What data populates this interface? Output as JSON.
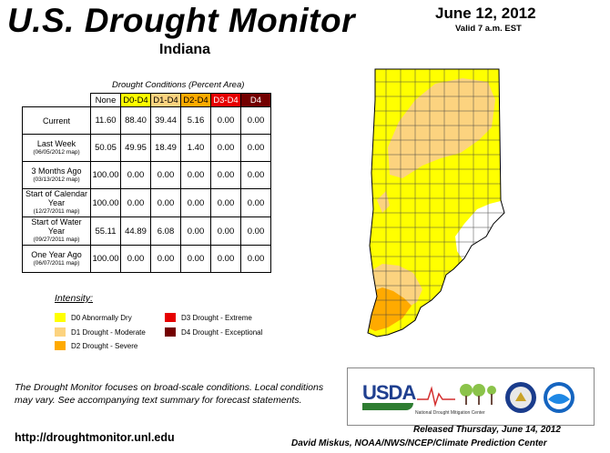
{
  "header": {
    "title": "U.S. Drought Monitor",
    "state": "Indiana",
    "date": "June 12, 2012",
    "valid": "Valid 7 a.m. EST"
  },
  "table": {
    "caption": "Drought Conditions (Percent Area)",
    "columns": [
      "None",
      "D0-D4",
      "D1-D4",
      "D2-D4",
      "D3-D4",
      "D4"
    ],
    "column_colors": [
      "#ffffff",
      "#ffff00",
      "#fcd37f",
      "#ffaa00",
      "#e60000",
      "#730000"
    ],
    "rows": [
      {
        "label": "Current",
        "sub": "",
        "values": [
          "11.60",
          "88.40",
          "39.44",
          "5.16",
          "0.00",
          "0.00"
        ]
      },
      {
        "label": "Last Week",
        "sub": "(06/05/2012 map)",
        "values": [
          "50.05",
          "49.95",
          "18.49",
          "1.40",
          "0.00",
          "0.00"
        ]
      },
      {
        "label": "3 Months Ago",
        "sub": "(03/13/2012 map)",
        "values": [
          "100.00",
          "0.00",
          "0.00",
          "0.00",
          "0.00",
          "0.00"
        ]
      },
      {
        "label": "Start of Calendar Year",
        "sub": "(12/27/2011 map)",
        "values": [
          "100.00",
          "0.00",
          "0.00",
          "0.00",
          "0.00",
          "0.00"
        ]
      },
      {
        "label": "Start of Water Year",
        "sub": "(09/27/2011 map)",
        "values": [
          "55.11",
          "44.89",
          "6.08",
          "0.00",
          "0.00",
          "0.00"
        ]
      },
      {
        "label": "One Year Ago",
        "sub": "(06/07/2011 map)",
        "values": [
          "100.00",
          "0.00",
          "0.00",
          "0.00",
          "0.00",
          "0.00"
        ]
      }
    ]
  },
  "legend": {
    "title": "Intensity:",
    "items": [
      {
        "label": "D0 Abnormally Dry",
        "color": "#ffff00"
      },
      {
        "label": "D1 Drought - Moderate",
        "color": "#fcd37f"
      },
      {
        "label": "D2 Drought - Severe",
        "color": "#ffaa00"
      },
      {
        "label": "D3 Drought - Extreme",
        "color": "#e60000"
      },
      {
        "label": "D4 Drought - Exceptional",
        "color": "#730000"
      }
    ]
  },
  "footer": {
    "note": "The Drought Monitor focuses on broad-scale conditions. Local conditions may vary. See accompanying text summary for forecast statements.",
    "url": "http://droughtmonitor.unl.edu",
    "released": "Released Thursday, June 14, 2012",
    "author": "David Miskus, NOAA/NWS/NCEP/Climate Prediction Center"
  },
  "logos": {
    "usda": "USDA",
    "ndmc": "National Drought Mitigation Center"
  }
}
